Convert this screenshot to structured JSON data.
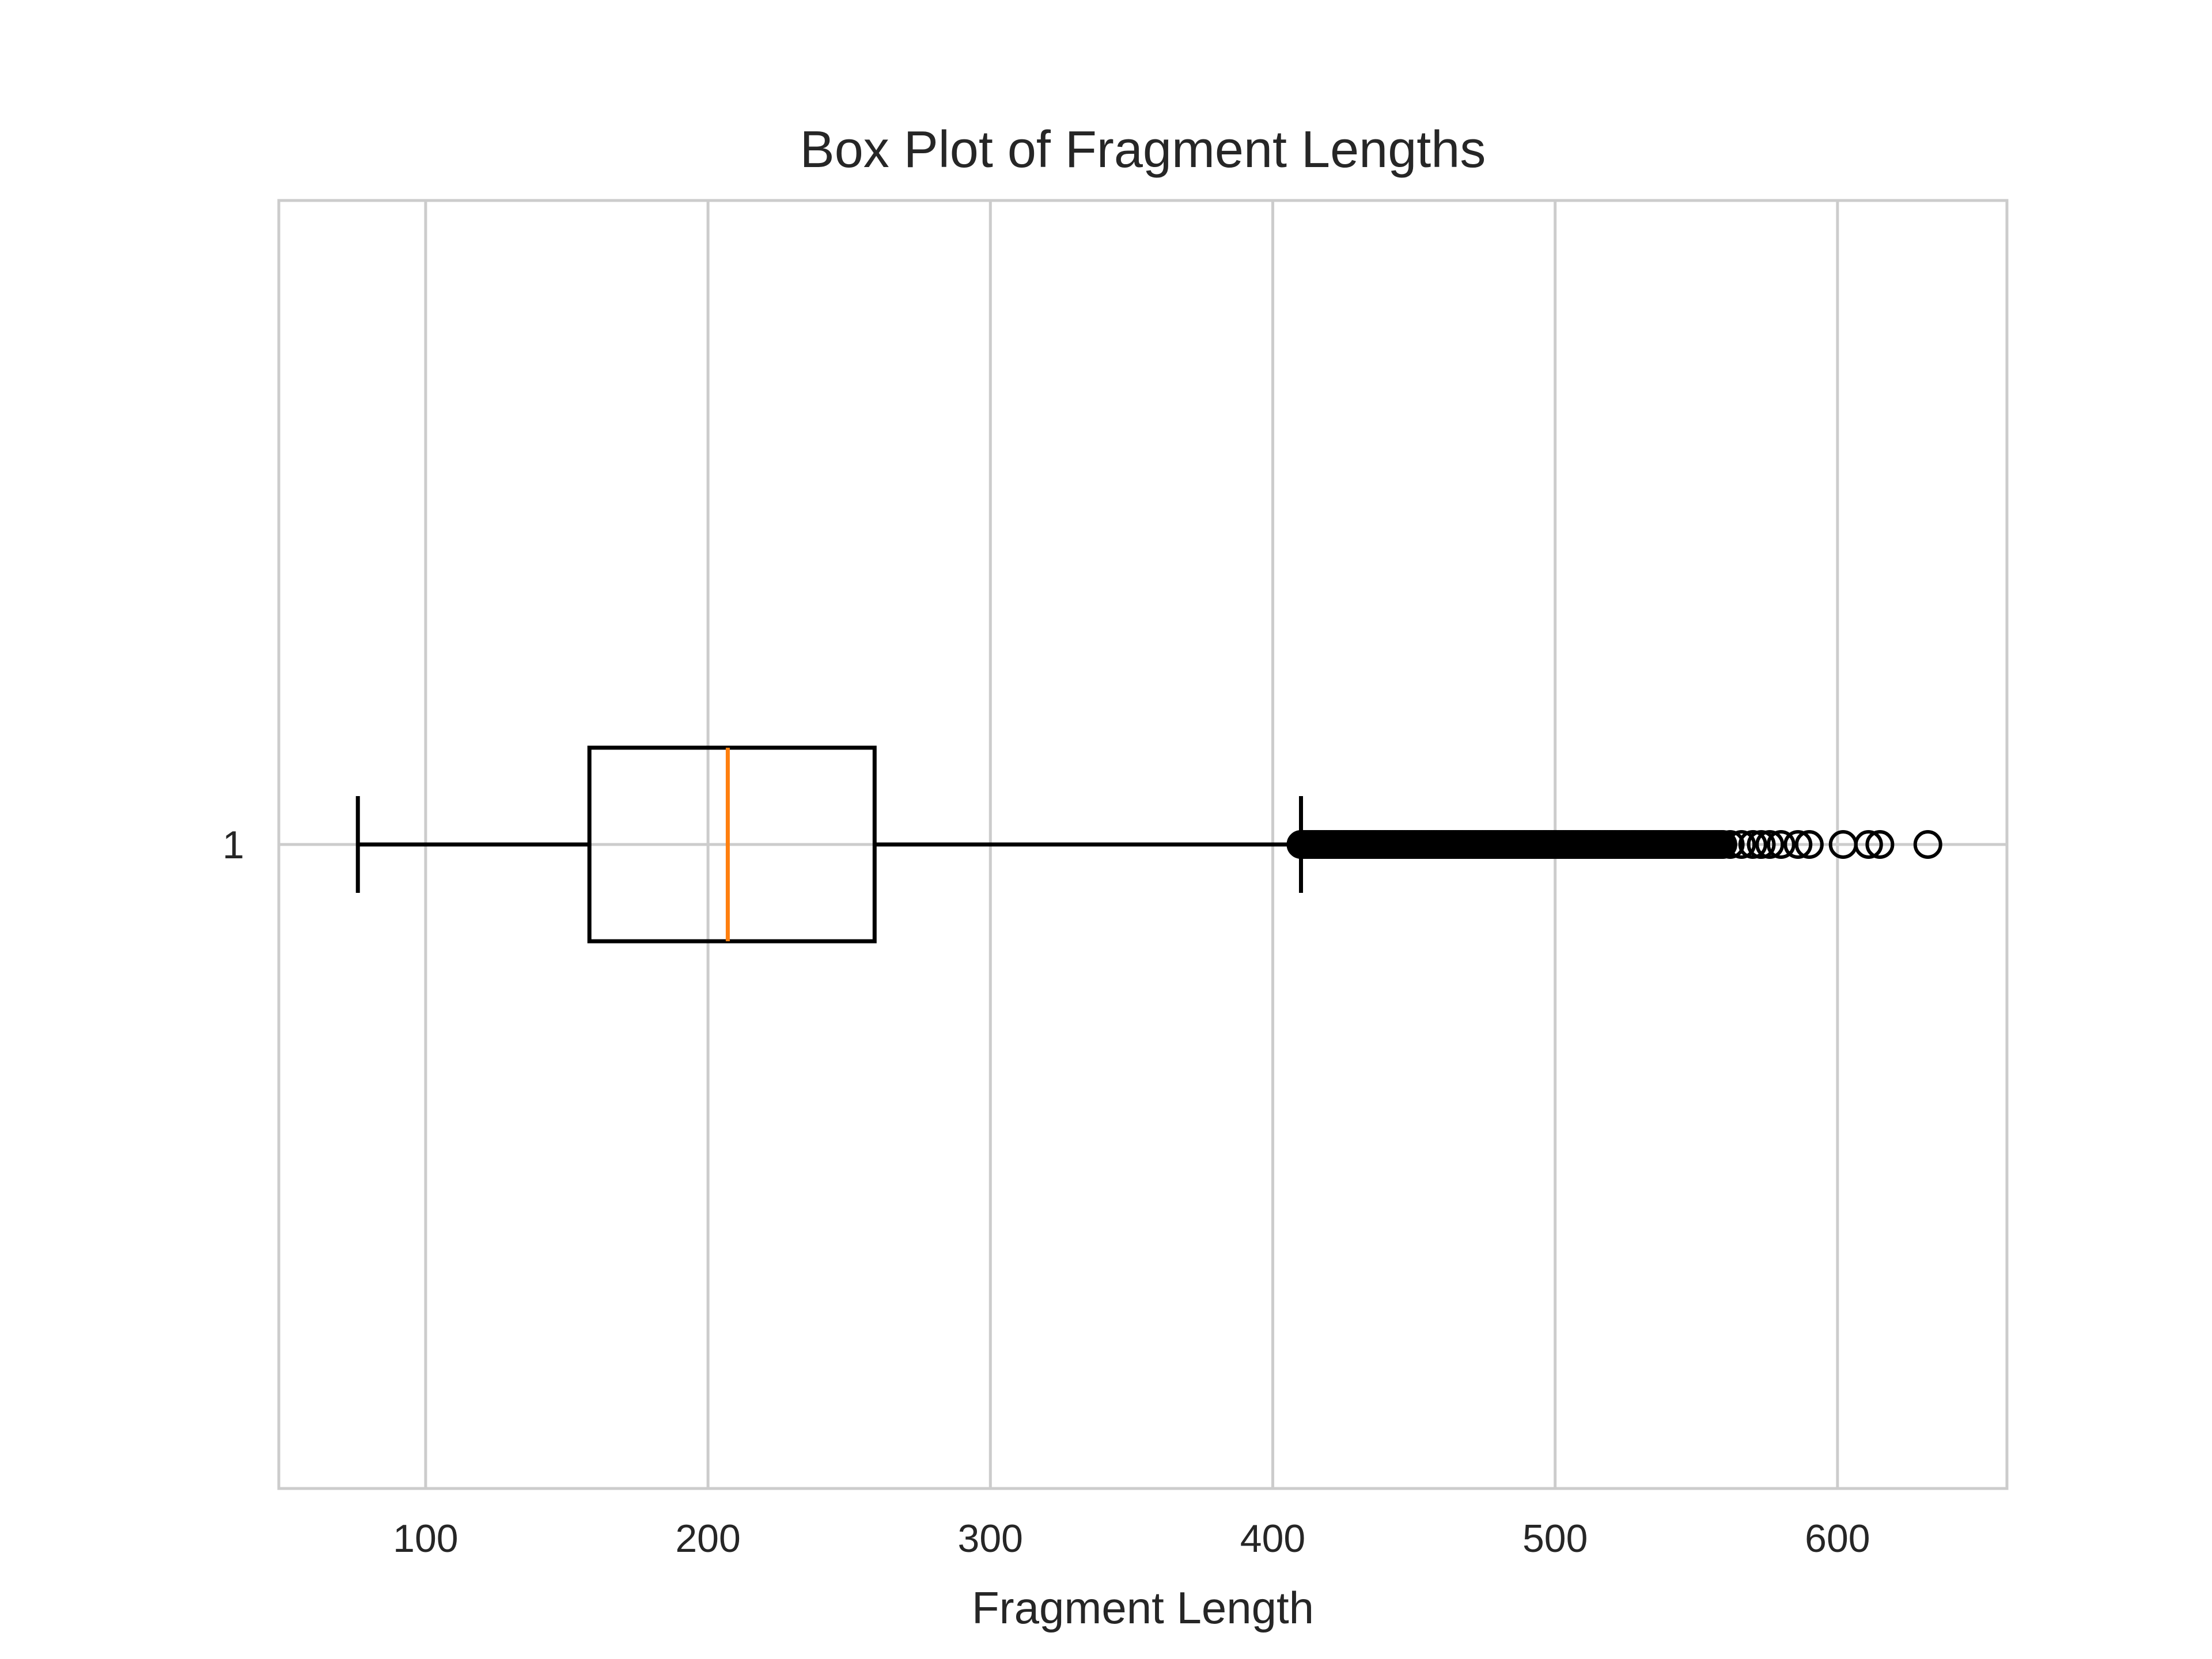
{
  "chart_data": {
    "type": "box",
    "orientation": "horizontal",
    "title": "Box Plot of Fragment Lengths",
    "xlabel": "Fragment Length",
    "ylabel": "",
    "xlim": [
      48,
      660
    ],
    "xticks": [
      100,
      200,
      300,
      400,
      500,
      600
    ],
    "xtick_labels": [
      "100",
      "200",
      "300",
      "400",
      "500",
      "600"
    ],
    "yticks": [
      "1"
    ],
    "grid": true,
    "series": [
      {
        "label": "1",
        "whisker_low": 76,
        "q1": 158,
        "median": 207,
        "q3": 259,
        "whisker_high": 410,
        "outlier_range": [
          410,
          560
        ],
        "sparse_outliers": [
          562,
          566,
          570,
          573,
          576,
          580,
          586,
          590,
          602,
          611,
          615,
          632
        ]
      }
    ],
    "colors": {
      "box": "#000000",
      "median": "#ff7f0e",
      "grid": "#cccccc",
      "frame": "#cccccc",
      "outlier_edge": "#000000"
    }
  }
}
